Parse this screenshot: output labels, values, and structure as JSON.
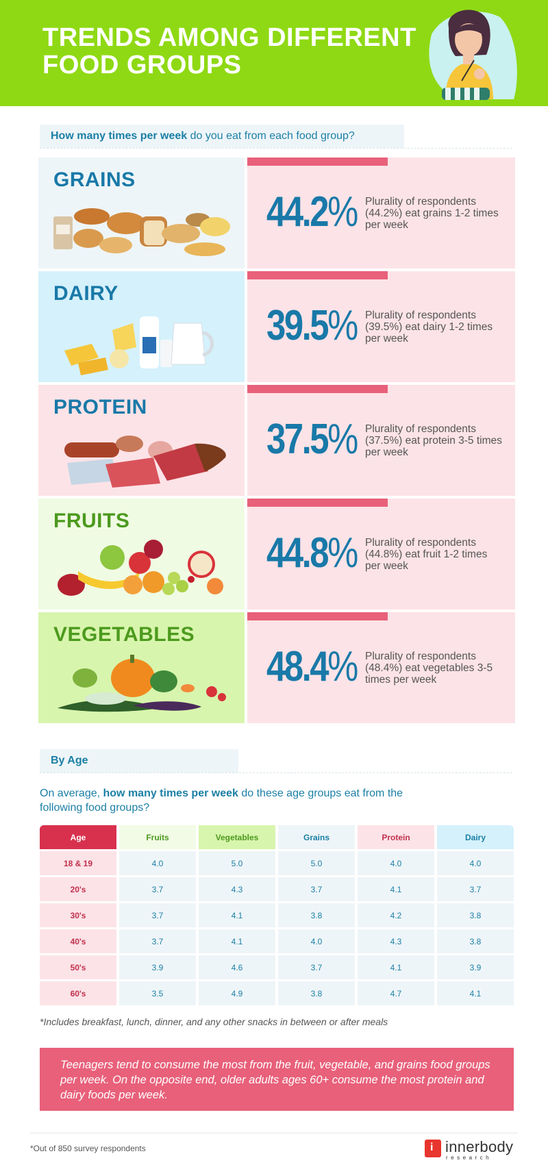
{
  "header": {
    "title_line1": "TRENDS AMONG DIFFERENT",
    "title_line2": "FOOD GROUPS"
  },
  "question": {
    "bold": "How many times per week",
    "rest": " do you eat from each food group?"
  },
  "groups": [
    {
      "name": "GRAINS",
      "pct": "44.2",
      "desc": "Plurality of respondents (44.2%) eat grains 1-2 times per week",
      "bg": "#eef5f8"
    },
    {
      "name": "DAIRY",
      "pct": "39.5",
      "desc": "Plurality of respondents (39.5%) eat dairy 1-2 times per week",
      "bg": "#d5f1fb"
    },
    {
      "name": "PROTEIN",
      "pct": "37.5",
      "desc": "Plurality of respondents (37.5%) eat protein 3-5 times per week",
      "bg": "#fce3e7"
    },
    {
      "name": "FRUITS",
      "pct": "44.8",
      "desc": "Plurality of respondents (44.8%) eat fruit 1-2 times per week",
      "bg": "#f0fbe3"
    },
    {
      "name": "VEGETABLES",
      "pct": "48.4",
      "desc": "Plurality of respondents (48.4%) eat vegetables 3-5 times per week",
      "bg": "#d8f5ad"
    }
  ],
  "percent_sign": "%",
  "by_age": {
    "label": "By Age",
    "question_pre": "On average, ",
    "question_bold": "how many times per week",
    "question_post": " do these age groups eat from the following food groups?"
  },
  "table": {
    "headers": [
      {
        "label": "Age",
        "bg": "#d8314e",
        "color": "#ffffff"
      },
      {
        "label": "Fruits",
        "bg": "#f2fbe6",
        "color": "#4c9a1e"
      },
      {
        "label": "Vegetables",
        "bg": "#d8f5ad",
        "color": "#4c9a1e"
      },
      {
        "label": "Grains",
        "bg": "#eef5f8",
        "color": "#1b7fa5"
      },
      {
        "label": "Protein",
        "bg": "#fce3e7",
        "color": "#c0304e"
      },
      {
        "label": "Dairy",
        "bg": "#d5f1fb",
        "color": "#1b7fa5"
      }
    ],
    "rows": [
      [
        "18 & 19",
        "4.0",
        "5.0",
        "5.0",
        "4.0",
        "4.0"
      ],
      [
        "20's",
        "3.7",
        "4.3",
        "3.7",
        "4.1",
        "3.7"
      ],
      [
        "30's",
        "3.7",
        "4.1",
        "3.8",
        "4.2",
        "3.8"
      ],
      [
        "40's",
        "3.7",
        "4.1",
        "4.0",
        "4.3",
        "3.8"
      ],
      [
        "50's",
        "3.9",
        "4.6",
        "3.7",
        "4.1",
        "3.9"
      ],
      [
        "60's",
        "3.5",
        "4.9",
        "3.8",
        "4.7",
        "4.1"
      ]
    ]
  },
  "footnote": "*Includes breakfast, lunch, dinner, and any other snacks in between or after meals",
  "summary": "Teenagers tend to consume the most from the fruit, vegetable, and grains food groups per week. On the opposite end, older adults ages 60+ consume the most protein and dairy foods per week.",
  "footer": {
    "note": "*Out of 850 survey respondents",
    "logo_letter": "i",
    "logo_name": "innerbody",
    "logo_sub": "research"
  },
  "colors": {
    "header_green": "#8fd914",
    "accent_blue": "#1979a8",
    "accent_pink": "#e8607a",
    "green_text": "#4c9a1e"
  }
}
